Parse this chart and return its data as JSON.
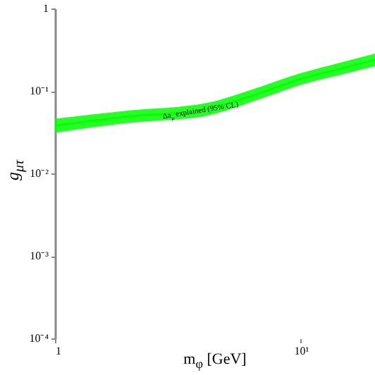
{
  "chart_data": {
    "type": "line",
    "xlabel": "m$_{φ}$ [GeV]",
    "ylabel": "g$_{μτ}$",
    "x": [
      1,
      2,
      4,
      7,
      10,
      14,
      20
    ],
    "series": [
      {
        "color": "#00ff00",
        "values": [
          0.038,
          0.049,
          0.059,
          0.097,
          0.14,
          0.181,
          0.238
        ],
        "lower": [
          0.031,
          0.041,
          0.049,
          0.082,
          0.119,
          0.153,
          0.199
        ],
        "upper": [
          0.046,
          0.058,
          0.07,
          0.115,
          0.164,
          0.214,
          0.284
        ]
      }
    ],
    "log": "xy",
    "xlim": [
      1,
      20
    ],
    "xticks": [
      {
        "value": 1,
        "label": "1"
      },
      {
        "value": 10,
        "label": "10¹"
      }
    ],
    "ylim": [
      0.0001,
      1
    ],
    "yticks": [
      {
        "value": 0.0001,
        "label": "10⁻⁴"
      },
      {
        "value": 0.001,
        "label": "10⁻³"
      },
      {
        "value": 0.01,
        "label": "10⁻²"
      },
      {
        "value": 0.1,
        "label": "10⁻¹"
      },
      {
        "value": 1,
        "label": "1"
      }
    ],
    "grid": false,
    "annotations": [
      {
        "text": "Δa$_{μ}$ explained (95% CL)",
        "x": 3.9,
        "y": 0.059
      }
    ]
  }
}
